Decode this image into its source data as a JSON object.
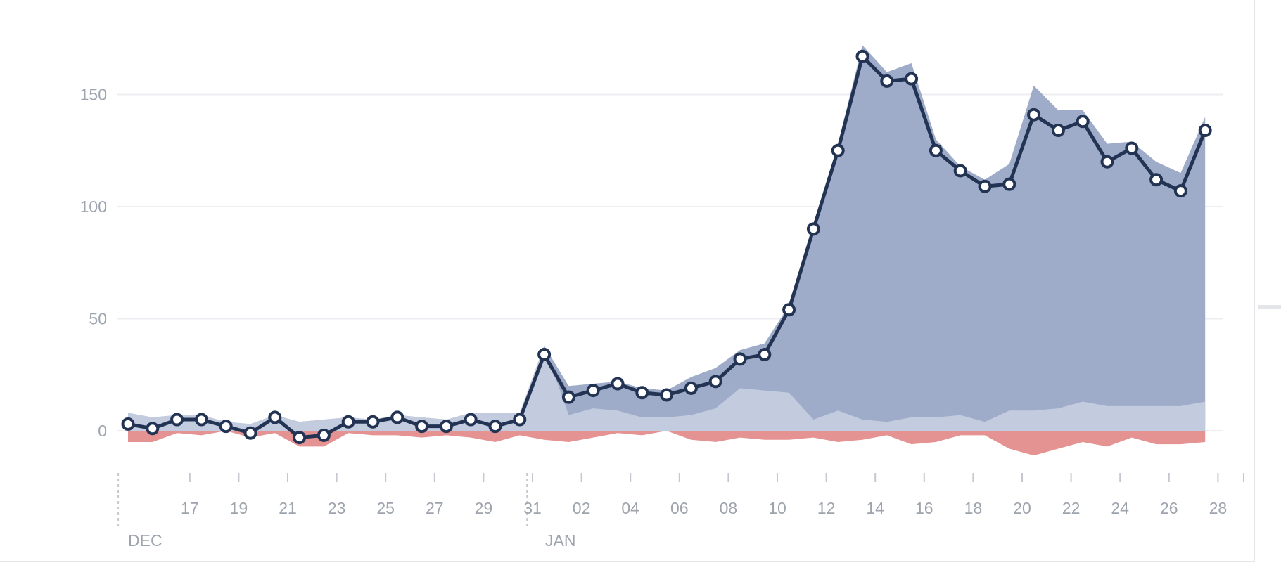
{
  "chart_data": {
    "type": "area",
    "title": "",
    "xlabel": "",
    "ylabel": "",
    "ylim": [
      -20,
      180
    ],
    "y_ticks": [
      0,
      50,
      100,
      150
    ],
    "grid": true,
    "x": [
      "2014-12-16",
      "2014-12-17",
      "2014-12-18",
      "2014-12-19",
      "2014-12-20",
      "2014-12-21",
      "2014-12-22",
      "2014-12-23",
      "2014-12-24",
      "2014-12-25",
      "2014-12-26",
      "2014-12-27",
      "2014-12-28",
      "2014-12-29",
      "2014-12-30",
      "2014-12-31",
      "2015-01-01",
      "2015-01-02",
      "2015-01-03",
      "2015-01-04",
      "2015-01-05",
      "2015-01-06",
      "2015-01-07",
      "2015-01-08",
      "2015-01-09",
      "2015-01-10",
      "2015-01-11",
      "2015-01-12",
      "2015-01-13",
      "2015-01-14",
      "2015-01-15",
      "2015-01-16",
      "2015-01-17",
      "2015-01-18",
      "2015-01-19",
      "2015-01-20",
      "2015-01-21",
      "2015-01-22",
      "2015-01-23",
      "2015-01-24",
      "2015-01-25",
      "2015-01-26",
      "2015-01-27",
      "2015-01-28",
      "2015-01-29"
    ],
    "x_tick_labels": [
      "17",
      "19",
      "21",
      "23",
      "25",
      "27",
      "29",
      "31",
      "02",
      "04",
      "06",
      "08",
      "10",
      "12",
      "14",
      "16",
      "18",
      "20",
      "22",
      "24",
      "26",
      "28"
    ],
    "month_labels": [
      "DEC",
      "JAN"
    ],
    "series": [
      {
        "role": "net-line",
        "color": "#233353",
        "values": [
          3,
          1,
          5,
          5,
          2,
          -1,
          6,
          -3,
          -2,
          4,
          4,
          6,
          2,
          2,
          5,
          2,
          5,
          34,
          15,
          18,
          21,
          17,
          16,
          19,
          22,
          32,
          34,
          54,
          90,
          125,
          167,
          156,
          157,
          125,
          116,
          109,
          110,
          141,
          134,
          138,
          120,
          126,
          112,
          107,
          134
        ]
      },
      {
        "role": "total-area",
        "color": "#9eacc9",
        "values": [
          8,
          6,
          7,
          7,
          4,
          3,
          7,
          4,
          5,
          6,
          5,
          7,
          6,
          5,
          8,
          8,
          8,
          38,
          20,
          21,
          22,
          19,
          18,
          24,
          28,
          36,
          39,
          56,
          92,
          128,
          172,
          160,
          164,
          130,
          118,
          112,
          119,
          154,
          143,
          143,
          128,
          129,
          120,
          115,
          140
        ]
      },
      {
        "role": "base-area",
        "color": "#c3cbde",
        "values": [
          8,
          6,
          7,
          7,
          4,
          3,
          7,
          4,
          5,
          6,
          5,
          7,
          6,
          5,
          8,
          8,
          8,
          38,
          7,
          10,
          9,
          6,
          6,
          7,
          10,
          19,
          18,
          17,
          5,
          9,
          5,
          4,
          6,
          6,
          7,
          4,
          9,
          9,
          10,
          13,
          11,
          11,
          11,
          11,
          13
        ]
      },
      {
        "role": "negative-area",
        "color": "#e59292",
        "values": [
          -5,
          -5,
          -1,
          -2,
          0,
          -3,
          -1,
          -7,
          -7,
          -1,
          -2,
          -2,
          -3,
          -2,
          -3,
          -5,
          -2,
          -4,
          -5,
          -3,
          -1,
          -2,
          0,
          -4,
          -5,
          -3,
          -4,
          -4,
          -3,
          -5,
          -4,
          -2,
          -6,
          -5,
          -2,
          -2,
          -8,
          -11,
          -8,
          -5,
          -7,
          -3,
          -6,
          -6,
          -5
        ]
      }
    ]
  }
}
